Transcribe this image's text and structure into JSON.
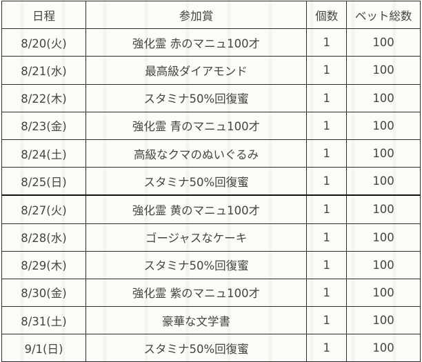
{
  "headers": [
    "日程",
    "参加賞",
    "個数",
    "ベット総数"
  ],
  "rows": [
    {
      "date": "8/20(火)",
      "prize": "強化霊 赤のマニュ100才",
      "count": "1",
      "bet": "100"
    },
    {
      "date": "8/21(水)",
      "prize": "最高級ダイアモンド",
      "count": "1",
      "bet": "100"
    },
    {
      "date": "8/22(木)",
      "prize": "スタミナ50%回復蜜",
      "count": "1",
      "bet": "100"
    },
    {
      "date": "8/23(金)",
      "prize": "強化霊 青のマニュ100才",
      "count": "1",
      "bet": "100"
    },
    {
      "date": "8/24(土)",
      "prize": "高級なクマのぬいぐるみ",
      "count": "1",
      "bet": "100"
    },
    {
      "date": "8/25(日)",
      "prize": "スタミナ50%回復蜜",
      "count": "1",
      "bet": "100"
    },
    {
      "date": "8/27(火)",
      "prize": "強化霊 黄のマニュ100才",
      "count": "1",
      "bet": "100"
    },
    {
      "date": "8/28(水)",
      "prize": "ゴージャスなケーキ",
      "count": "1",
      "bet": "100"
    },
    {
      "date": "8/29(木)",
      "prize": "スタミナ50%回復蜜",
      "count": "1",
      "bet": "100"
    },
    {
      "date": "8/30(金)",
      "prize": "強化霊 紫のマニュ100才",
      "count": "1",
      "bet": "100"
    },
    {
      "date": "8/31(土)",
      "prize": "豪華な文学書",
      "count": "1",
      "bet": "100"
    },
    {
      "date": "9/1(日)",
      "prize": "スタミナ50%回復蜜",
      "count": "1",
      "bet": "100"
    }
  ]
}
